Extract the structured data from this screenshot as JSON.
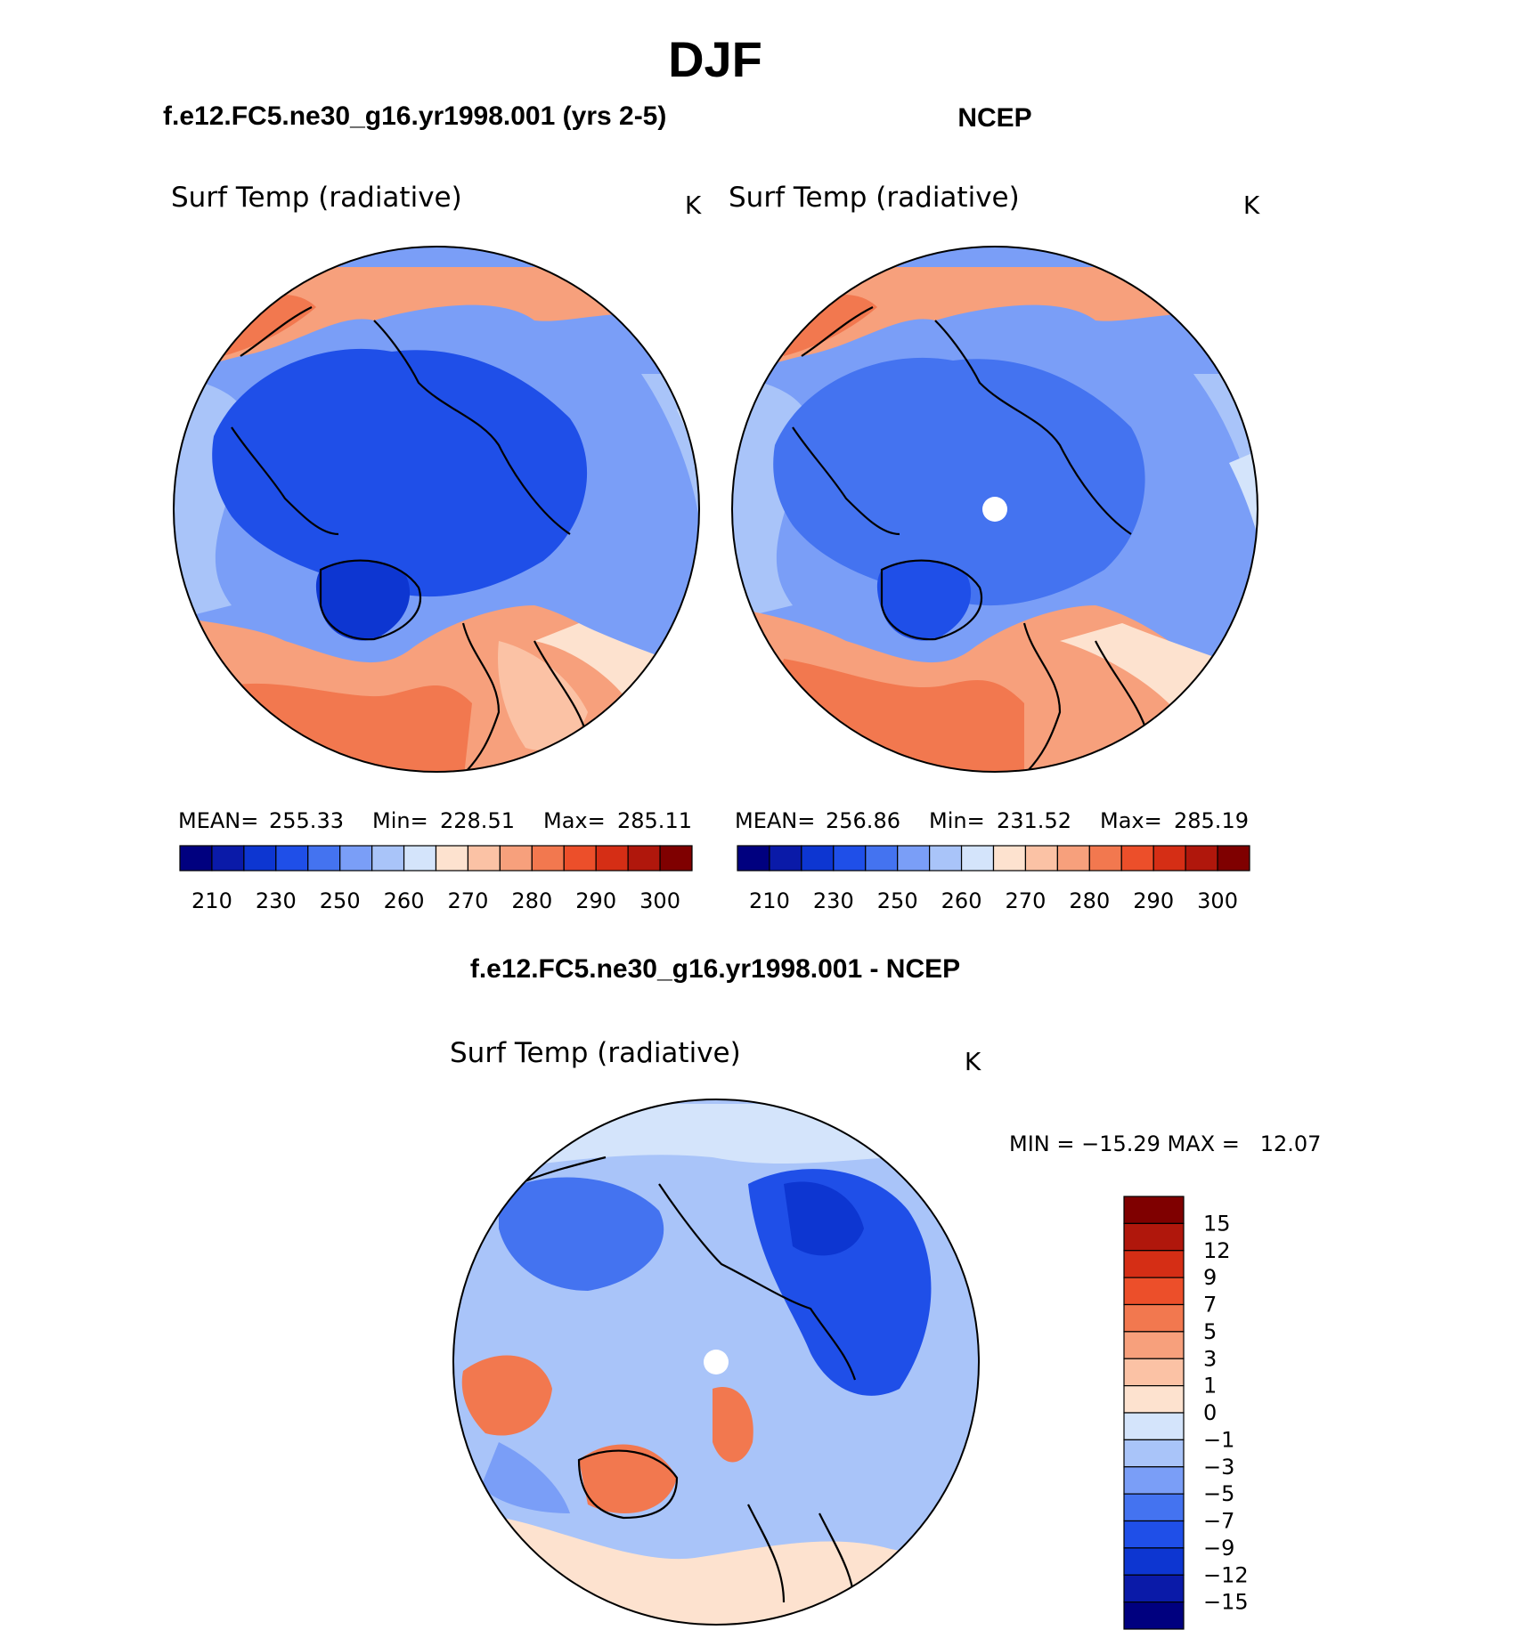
{
  "page_title": "DJF",
  "panels": [
    {
      "id": "model",
      "header": "f.e12.FC5.ne30_g16.yr1998.001 (yrs 2-5)",
      "variable": "Surf Temp (radiative)",
      "units": "K",
      "stats": {
        "mean_label": "MEAN=",
        "mean": "255.33",
        "min_label": "Min=",
        "min": "228.51",
        "max_label": "Max=",
        "max": "285.11"
      }
    },
    {
      "id": "obs",
      "header": "NCEP",
      "variable": "Surf Temp (radiative)",
      "units": "K",
      "stats": {
        "mean_label": "MEAN=",
        "mean": "256.86",
        "min_label": "Min=",
        "min": "231.52",
        "max_label": "Max=",
        "max": "285.19"
      }
    }
  ],
  "abs_colorbar": {
    "colors": [
      "#00007f",
      "#0a1aa8",
      "#0d36d1",
      "#1f4fe8",
      "#4473f0",
      "#7a9ef7",
      "#a9c4f9",
      "#d4e4fb",
      "#fde2cf",
      "#fbc2a5",
      "#f7a07c",
      "#f2784f",
      "#ec4f2a",
      "#d52e15",
      "#b0170c",
      "#7f0000"
    ],
    "labels": [
      "210",
      "230",
      "250",
      "260",
      "270",
      "280",
      "290",
      "300"
    ]
  },
  "diff_panel": {
    "header": "f.e12.FC5.ne30_g16.yr1998.001 - NCEP",
    "variable": "Surf Temp (radiative)",
    "units": "K",
    "minmax": "MIN = −15.29 MAX =   12.07"
  },
  "diff_colorbar": {
    "colors": [
      "#7f0000",
      "#b0170c",
      "#d52e15",
      "#ec4f2a",
      "#f2784f",
      "#f7a07c",
      "#fbc2a5",
      "#fde2cf",
      "#d4e4fb",
      "#a9c4f9",
      "#7a9ef7",
      "#4473f0",
      "#1f4fe8",
      "#0d36d1",
      "#0a1aa8",
      "#00007f"
    ],
    "labels": [
      "15",
      "12",
      "9",
      "7",
      "5",
      "3",
      "1",
      "0",
      "−1",
      "−3",
      "−5",
      "−7",
      "−9",
      "−12",
      "−15"
    ]
  }
}
